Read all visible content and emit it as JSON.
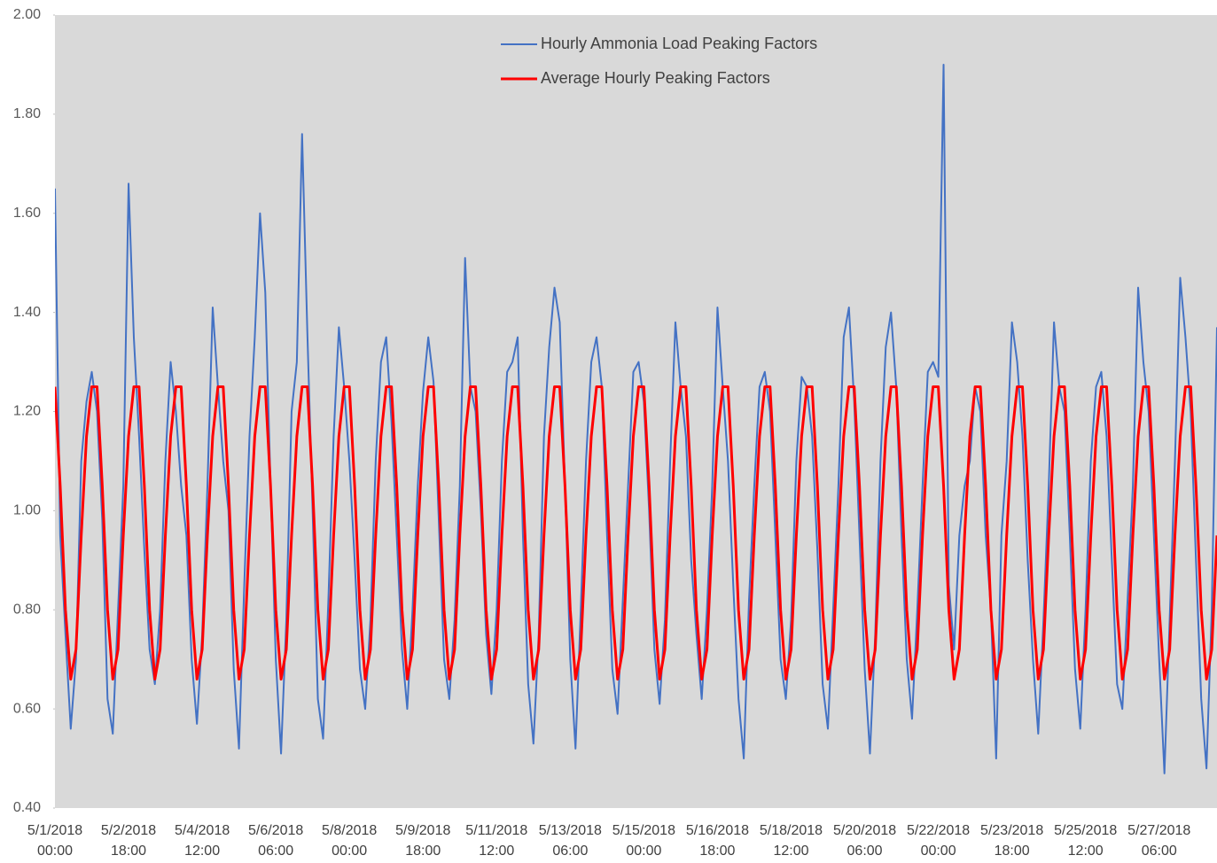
{
  "chart_data": {
    "type": "line",
    "categories": [
      "5/1/2018 00:00",
      null,
      null,
      null,
      null,
      null,
      null,
      null,
      null,
      null,
      null,
      null,
      null,
      null,
      "5/2/2018 18:00",
      null,
      null,
      null,
      null,
      null,
      null,
      null,
      null,
      null,
      null,
      null,
      null,
      null,
      "5/4/2018 12:00",
      null,
      null,
      null,
      null,
      null,
      null,
      null,
      null,
      null,
      null,
      null,
      null,
      null,
      "5/6/2018 06:00",
      null,
      null,
      null,
      null,
      null,
      null,
      null,
      null,
      null,
      null,
      null,
      null,
      null,
      "5/8/2018 00:00",
      null,
      null,
      null,
      null,
      null,
      null,
      null,
      null,
      null,
      null,
      null,
      null,
      null,
      "5/9/2018 18:00",
      null,
      null,
      null,
      null,
      null,
      null,
      null,
      null,
      null,
      null,
      null,
      null,
      null,
      "5/11/2018 12:00",
      null,
      null,
      null,
      null,
      null,
      null,
      null,
      null,
      null,
      null,
      null,
      null,
      null,
      "5/13/2018 06:00",
      null,
      null,
      null,
      null,
      null,
      null,
      null,
      null,
      null,
      null,
      null,
      null,
      null,
      "5/15/2018 00:00",
      null,
      null,
      null,
      null,
      null,
      null,
      null,
      null,
      null,
      null,
      null,
      null,
      null,
      "5/16/2018 18:00",
      null,
      null,
      null,
      null,
      null,
      null,
      null,
      null,
      null,
      null,
      null,
      null,
      null,
      "5/18/2018 12:00",
      null,
      null,
      null,
      null,
      null,
      null,
      null,
      null,
      null,
      null,
      null,
      null,
      null,
      "5/20/2018 06:00",
      null,
      null,
      null,
      null,
      null,
      null,
      null,
      null,
      null,
      null,
      null,
      null,
      null,
      "5/22/2018 00:00",
      null,
      null,
      null,
      null,
      null,
      null,
      null,
      null,
      null,
      null,
      null,
      null,
      null,
      "5/23/2018 18:00",
      null,
      null,
      null,
      null,
      null,
      null,
      null,
      null,
      null,
      null,
      null,
      null,
      null,
      "5/25/2018 12:00",
      null,
      null,
      null,
      null,
      null,
      null,
      null,
      null,
      null,
      null,
      null,
      null,
      null,
      "5/27/2018 06:00",
      null,
      null,
      null,
      null,
      null,
      null,
      null,
      null,
      null,
      null,
      null
    ],
    "series": [
      {
        "name": "Hourly Ammonia Load Peaking Factors",
        "color": "#4472c4",
        "values": [
          1.65,
          0.95,
          0.75,
          0.56,
          0.7,
          1.1,
          1.22,
          1.28,
          1.2,
          0.98,
          0.62,
          0.55,
          0.8,
          1.05,
          1.66,
          1.35,
          1.15,
          0.92,
          0.72,
          0.65,
          0.8,
          1.1,
          1.3,
          1.2,
          1.05,
          0.95,
          0.7,
          0.57,
          0.75,
          1.05,
          1.41,
          1.25,
          1.1,
          1.0,
          0.68,
          0.52,
          0.85,
          1.15,
          1.35,
          1.6,
          1.44,
          1.05,
          0.7,
          0.51,
          0.78,
          1.2,
          1.3,
          1.76,
          1.36,
          1.0,
          0.62,
          0.54,
          0.82,
          1.15,
          1.37,
          1.25,
          1.1,
          0.9,
          0.68,
          0.6,
          0.78,
          1.1,
          1.3,
          1.35,
          1.18,
          0.95,
          0.72,
          0.6,
          0.8,
          1.05,
          1.24,
          1.35,
          1.26,
          0.98,
          0.7,
          0.62,
          0.78,
          1.05,
          1.51,
          1.25,
          1.2,
          1.0,
          0.75,
          0.63,
          0.8,
          1.1,
          1.28,
          1.3,
          1.35,
          0.95,
          0.65,
          0.53,
          0.75,
          1.15,
          1.33,
          1.45,
          1.38,
          1.05,
          0.7,
          0.52,
          0.8,
          1.1,
          1.3,
          1.35,
          1.25,
          0.95,
          0.68,
          0.59,
          0.82,
          1.05,
          1.28,
          1.3,
          1.22,
          1.0,
          0.72,
          0.61,
          0.78,
          1.1,
          1.38,
          1.25,
          1.15,
          0.9,
          0.75,
          0.62,
          0.8,
          1.05,
          1.41,
          1.25,
          1.1,
          0.85,
          0.62,
          0.5,
          0.82,
          1.05,
          1.25,
          1.28,
          1.2,
          0.95,
          0.7,
          0.62,
          0.78,
          1.1,
          1.27,
          1.25,
          1.15,
          0.92,
          0.65,
          0.56,
          0.8,
          1.05,
          1.35,
          1.41,
          1.22,
          0.95,
          0.68,
          0.51,
          0.75,
          1.1,
          1.33,
          1.4,
          1.25,
          0.95,
          0.7,
          0.58,
          0.8,
          1.05,
          1.28,
          1.3,
          1.27,
          1.9,
          0.85,
          0.72,
          0.95,
          1.05,
          1.1,
          1.25,
          1.2,
          0.95,
          0.8,
          0.5,
          0.95,
          1.1,
          1.38,
          1.3,
          1.15,
          0.9,
          0.7,
          0.55,
          0.78,
          1.05,
          1.38,
          1.25,
          1.2,
          0.95,
          0.68,
          0.56,
          0.8,
          1.1,
          1.25,
          1.28,
          1.15,
          0.9,
          0.65,
          0.6,
          0.82,
          1.05,
          1.45,
          1.3,
          1.2,
          0.95,
          0.7,
          0.47,
          0.78,
          1.1,
          1.47,
          1.35,
          1.2,
          0.9,
          0.62,
          0.48,
          0.8,
          1.37
        ]
      },
      {
        "name": "Average Hourly Peaking Factors",
        "color": "#ff0000",
        "values": [
          1.25,
          1.05,
          0.8,
          0.66,
          0.72,
          0.95,
          1.15,
          1.25,
          1.25,
          1.05,
          0.8,
          0.66,
          0.72,
          0.95,
          1.15,
          1.25,
          1.25,
          1.05,
          0.8,
          0.66,
          0.72,
          0.95,
          1.15,
          1.25,
          1.25,
          1.05,
          0.8,
          0.66,
          0.72,
          0.95,
          1.15,
          1.25,
          1.25,
          1.05,
          0.8,
          0.66,
          0.72,
          0.95,
          1.15,
          1.25,
          1.25,
          1.05,
          0.8,
          0.66,
          0.72,
          0.95,
          1.15,
          1.25,
          1.25,
          1.05,
          0.8,
          0.66,
          0.72,
          0.95,
          1.15,
          1.25,
          1.25,
          1.05,
          0.8,
          0.66,
          0.72,
          0.95,
          1.15,
          1.25,
          1.25,
          1.05,
          0.8,
          0.66,
          0.72,
          0.95,
          1.15,
          1.25,
          1.25,
          1.05,
          0.8,
          0.66,
          0.72,
          0.95,
          1.15,
          1.25,
          1.25,
          1.05,
          0.8,
          0.66,
          0.72,
          0.95,
          1.15,
          1.25,
          1.25,
          1.05,
          0.8,
          0.66,
          0.72,
          0.95,
          1.15,
          1.25,
          1.25,
          1.05,
          0.8,
          0.66,
          0.72,
          0.95,
          1.15,
          1.25,
          1.25,
          1.05,
          0.8,
          0.66,
          0.72,
          0.95,
          1.15,
          1.25,
          1.25,
          1.05,
          0.8,
          0.66,
          0.72,
          0.95,
          1.15,
          1.25,
          1.25,
          1.05,
          0.8,
          0.66,
          0.72,
          0.95,
          1.15,
          1.25,
          1.25,
          1.05,
          0.8,
          0.66,
          0.72,
          0.95,
          1.15,
          1.25,
          1.25,
          1.05,
          0.8,
          0.66,
          0.72,
          0.95,
          1.15,
          1.25,
          1.25,
          1.05,
          0.8,
          0.66,
          0.72,
          0.95,
          1.15,
          1.25,
          1.25,
          1.05,
          0.8,
          0.66,
          0.72,
          0.95,
          1.15,
          1.25,
          1.25,
          1.05,
          0.8,
          0.66,
          0.72,
          0.95,
          1.15,
          1.25,
          1.25,
          1.05,
          0.8,
          0.66,
          0.72,
          0.95,
          1.15,
          1.25,
          1.25,
          1.05,
          0.8,
          0.66,
          0.72,
          0.95,
          1.15,
          1.25,
          1.25,
          1.05,
          0.8,
          0.66,
          0.72,
          0.95,
          1.15,
          1.25,
          1.25,
          1.05,
          0.8,
          0.66,
          0.72,
          0.95,
          1.15,
          1.25,
          1.25,
          1.05,
          0.8,
          0.66,
          0.72,
          0.95,
          1.15,
          1.25,
          1.25,
          1.05,
          0.8,
          0.66,
          0.72,
          0.95,
          1.15,
          1.25,
          1.25,
          1.05,
          0.8,
          0.66,
          0.72,
          0.95
        ]
      }
    ],
    "ylim": [
      0.4,
      2.0
    ],
    "yticks": [
      {
        "value": 0.4,
        "label": "0.40"
      },
      {
        "value": 0.6,
        "label": "0.60"
      },
      {
        "value": 0.8,
        "label": "0.80"
      },
      {
        "value": 1.0,
        "label": "1.00"
      },
      {
        "value": 1.2,
        "label": "1.20"
      },
      {
        "value": 1.4,
        "label": "1.40"
      },
      {
        "value": 1.6,
        "label": "1.60"
      },
      {
        "value": 1.8,
        "label": "1.80"
      },
      {
        "value": 2.0,
        "label": "2.00"
      }
    ],
    "grid": false,
    "legend": "top"
  }
}
